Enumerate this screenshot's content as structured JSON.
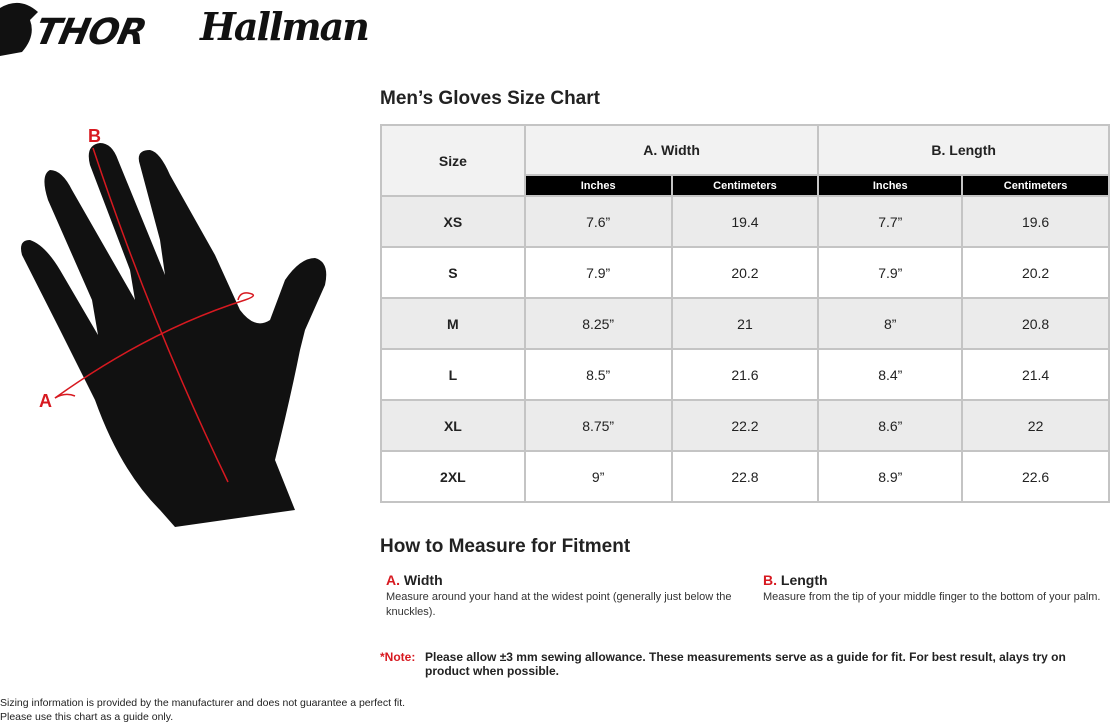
{
  "brands": [
    "THOR",
    "Hallman"
  ],
  "hand_labels": {
    "a": "A",
    "b": "B"
  },
  "chart_title": "Men’s Gloves Size Chart",
  "table": {
    "size_header": "Size",
    "groups": [
      "A. Width",
      "B. Length"
    ],
    "units": [
      "Inches",
      "Centimeters",
      "Inches",
      "Centimeters"
    ],
    "rows": [
      [
        "XS",
        "7.6”",
        "19.4",
        "7.7”",
        "19.6"
      ],
      [
        "S",
        "7.9”",
        "20.2",
        "7.9”",
        "20.2"
      ],
      [
        "M",
        "8.25”",
        "21",
        "8”",
        "20.8"
      ],
      [
        "L",
        "8.5”",
        "21.6",
        "8.4”",
        "21.4"
      ],
      [
        "XL",
        "8.75”",
        "22.2",
        "8.6”",
        "22"
      ],
      [
        "2XL",
        "9”",
        "22.8",
        "8.9”",
        "22.6"
      ]
    ]
  },
  "measure": {
    "title": "How to Measure for Fitment",
    "width": {
      "prefix": "A.",
      "label": "Width",
      "text": "Measure around your hand at the widest point (generally just below the knuckles)."
    },
    "length": {
      "prefix": "B.",
      "label": "Length",
      "text": "Measure from the tip of your middle finger to the bottom of your palm."
    }
  },
  "note": {
    "label": "*Note:",
    "text": "Please allow ±3 mm sewing allowance. These measurements serve as a guide for fit. For best result, alays try on product when possible."
  },
  "disclaimer": [
    "Sizing information is provided by the manufacturer and does not guarantee a perfect fit.",
    "Please use this chart as a guide only."
  ],
  "colors": {
    "accent": "#d71920",
    "header_bg": "#000000",
    "row_alt": "#ebebeb"
  }
}
